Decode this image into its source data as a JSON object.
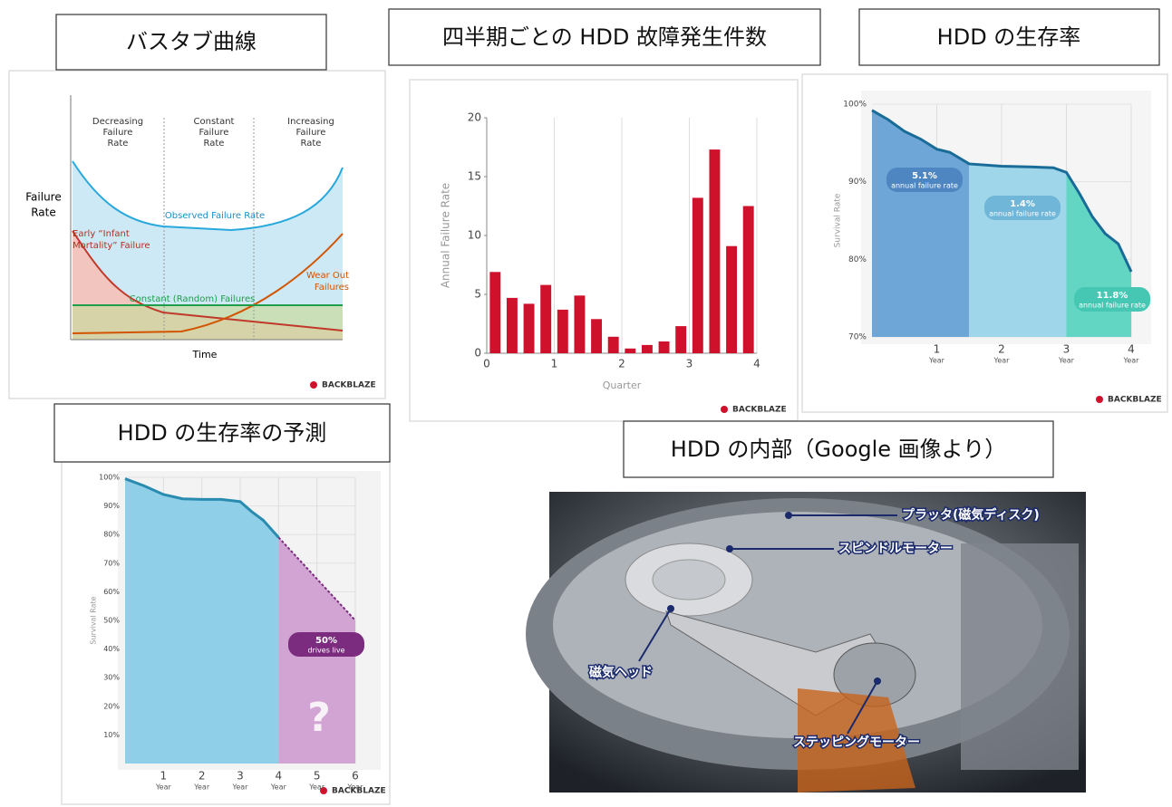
{
  "headings": [
    "バスタブ曲線",
    "四半期ごとの HDD 故障発生件数",
    "HDD の生存率",
    "HDD の生存率の予測",
    "HDD の内部（Google 画像より）"
  ],
  "brand": "BACKBLAZE",
  "bathtub": {
    "phases": [
      [
        "Decreasing",
        "Failure",
        "Rate"
      ],
      [
        "Constant",
        "Failure",
        "Rate"
      ],
      [
        "Increasing",
        "Failure",
        "Rate"
      ]
    ],
    "ylabel": [
      "Failure",
      "Rate"
    ],
    "xlabel": "Time",
    "observed": "Observed Failure Rate",
    "infant": [
      "Early “Infant",
      "Mortality” Failure"
    ],
    "wear": [
      "Wear Out",
      "Failures"
    ],
    "constant": "Constant (Random) Failures"
  },
  "chart_data": [
    {
      "type": "bar",
      "color": "#d0112b",
      "xlabel": "Quarter",
      "ylabel": "Annual Failure Rate",
      "x": [
        0.125,
        0.375,
        0.625,
        0.875,
        1.125,
        1.375,
        1.625,
        1.875,
        2.125,
        2.375,
        2.625,
        2.875,
        3.125,
        3.375,
        3.625,
        3.875
      ],
      "values": [
        6.9,
        4.7,
        4.2,
        5.8,
        3.7,
        4.9,
        2.9,
        1.4,
        0.4,
        0.7,
        1.0,
        2.3,
        13.2,
        17.3,
        9.1,
        12.5
      ],
      "xlim": [
        0,
        4
      ],
      "xticks": [
        0,
        1,
        2,
        3,
        4
      ],
      "ylim": [
        0,
        20
      ],
      "yticks": [
        0,
        5,
        10,
        15,
        20
      ],
      "grid": true
    },
    {
      "type": "area",
      "ylabel": "Survival Rate",
      "xunit": "Year",
      "series": [
        {
          "color": "#1a6c98",
          "x": [
            0,
            0.25,
            0.5,
            0.75,
            1,
            1.2,
            1.5,
            2,
            2.5,
            2.8,
            3,
            3.2,
            3.4,
            3.6,
            3.8,
            4
          ],
          "values": [
            99.2,
            98,
            96.5,
            95.5,
            94.2,
            93.8,
            92.3,
            92,
            91.9,
            91.8,
            91.2,
            88.5,
            85.5,
            83.3,
            82,
            78.4
          ]
        }
      ],
      "regions": [
        {
          "from": 0,
          "to": 1.5,
          "color": "#6ea6d8"
        },
        {
          "from": 1.5,
          "to": 3,
          "color": "#9fd6ea"
        },
        {
          "from": 3,
          "to": 4,
          "color": "#62d6c2"
        }
      ],
      "annotations": [
        {
          "label": "5.1%",
          "note": "annual failure rate",
          "color": "#4d86c0"
        },
        {
          "label": "1.4%",
          "note": "annual failure rate",
          "color": "#6fb6d8"
        },
        {
          "label": "11.8%",
          "note": "annual failure rate",
          "color": "#45c7b3"
        }
      ],
      "xlim": [
        0,
        4
      ],
      "xticks": [
        1,
        2,
        3,
        4
      ],
      "ylim": [
        70,
        100
      ],
      "yticks": [
        {
          "value": 70,
          "label": "70%"
        },
        {
          "value": 80,
          "label": "80%"
        },
        {
          "value": 90,
          "label": "90%"
        },
        {
          "value": 100,
          "label": "100%"
        }
      ],
      "grid": true
    },
    {
      "type": "area",
      "ylabel": "Survival Rate",
      "xunit": "Year",
      "series": [
        {
          "color": "#2a8bb0",
          "fill": "#8fd0e8",
          "x": [
            0,
            0.5,
            1,
            1.5,
            2,
            2.5,
            3,
            3.3,
            3.6,
            4
          ],
          "values": [
            99.5,
            97,
            94,
            92.5,
            92.3,
            92.3,
            91.5,
            88,
            85,
            79
          ]
        },
        {
          "color": "#7b2c7f",
          "fill": "#d2a4d4",
          "dashed": true,
          "x": [
            4,
            6
          ],
          "values": [
            79,
            50
          ]
        }
      ],
      "annotations": [
        {
          "label": "50%",
          "note": "drives live",
          "color": "#7b2c7f"
        },
        {
          "label": "?",
          "color": "#ffffff"
        }
      ],
      "xlim": [
        0,
        6
      ],
      "xticks": [
        1,
        2,
        3,
        4,
        5,
        6
      ],
      "ylim": [
        0,
        100
      ],
      "yticks": [
        {
          "value": 10,
          "label": "10%"
        },
        {
          "value": 20,
          "label": "20%"
        },
        {
          "value": 30,
          "label": "30%"
        },
        {
          "value": 40,
          "label": "40%"
        },
        {
          "value": 50,
          "label": "50%"
        },
        {
          "value": 60,
          "label": "60%"
        },
        {
          "value": 70,
          "label": "70%"
        },
        {
          "value": 80,
          "label": "80%"
        },
        {
          "value": 90,
          "label": "90%"
        },
        {
          "value": 100,
          "label": "100%"
        }
      ],
      "grid": true
    }
  ],
  "photo": {
    "labels": [
      "プラッタ(磁気ディスク)",
      "スピンドルモーター",
      "磁気ヘッド",
      "ステッピングモーター"
    ]
  }
}
